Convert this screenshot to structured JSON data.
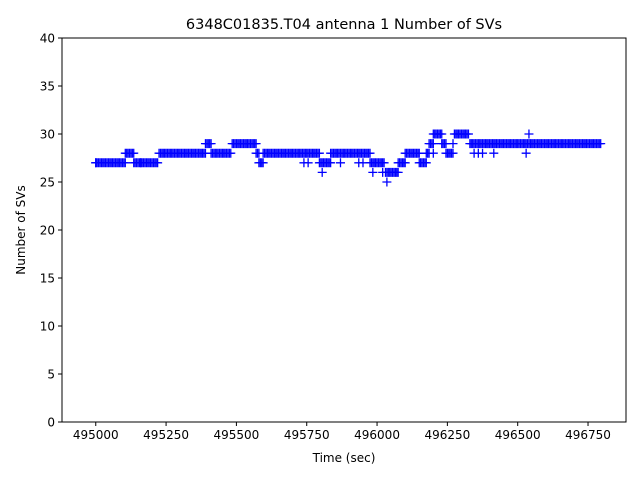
{
  "chart_data": {
    "type": "scatter",
    "title": "6348C01835.T04 antenna 1 Number of SVs",
    "xlabel": "Time (sec)",
    "ylabel": "Number of SVs",
    "xlim": [
      494880,
      496885
    ],
    "ylim": [
      0,
      40
    ],
    "xticks": [
      495000,
      495250,
      495500,
      495750,
      496000,
      496250,
      496500,
      496750
    ],
    "yticks": [
      0,
      5,
      10,
      15,
      20,
      25,
      30,
      35,
      40
    ],
    "grid": false,
    "legend": "none",
    "marker": "+",
    "color": "#0000ff",
    "runs": [
      {
        "x0": 495000,
        "x1": 495105,
        "y": 27
      },
      {
        "x0": 495105,
        "x1": 495135,
        "y": 28
      },
      {
        "x0": 495135,
        "x1": 495220,
        "y": 27
      },
      {
        "x0": 495225,
        "x1": 495390,
        "y": 28
      },
      {
        "x0": 495390,
        "x1": 495410,
        "y": 29
      },
      {
        "x0": 495410,
        "x1": 495480,
        "y": 28
      },
      {
        "x0": 495485,
        "x1": 495570,
        "y": 29
      },
      {
        "x0": 495570,
        "x1": 495580,
        "y": 28
      },
      {
        "x0": 495580,
        "x1": 495595,
        "y": 27
      },
      {
        "x0": 495595,
        "x1": 495795,
        "y": 28
      },
      {
        "x0": 495795,
        "x1": 495835,
        "y": 27
      },
      {
        "x0": 495835,
        "x1": 495975,
        "y": 28
      },
      {
        "x0": 495975,
        "x1": 496025,
        "y": 27
      },
      {
        "x0": 496030,
        "x1": 496075,
        "y": 26
      },
      {
        "x0": 496075,
        "x1": 496100,
        "y": 27
      },
      {
        "x0": 496100,
        "x1": 496150,
        "y": 28
      },
      {
        "x0": 496150,
        "x1": 496175,
        "y": 27
      },
      {
        "x0": 496175,
        "x1": 496185,
        "y": 28
      },
      {
        "x0": 496185,
        "x1": 496200,
        "y": 29
      },
      {
        "x0": 496200,
        "x1": 496230,
        "y": 30
      },
      {
        "x0": 496230,
        "x1": 496245,
        "y": 29
      },
      {
        "x0": 496245,
        "x1": 496270,
        "y": 28
      },
      {
        "x0": 496275,
        "x1": 496325,
        "y": 30
      },
      {
        "x0": 496330,
        "x1": 496795,
        "y": 29
      }
    ],
    "extra_points": [
      {
        "x": 495000,
        "y": 27
      },
      {
        "x": 495160,
        "y": 27
      },
      {
        "x": 495740,
        "y": 27
      },
      {
        "x": 495755,
        "y": 27
      },
      {
        "x": 495805,
        "y": 26
      },
      {
        "x": 495870,
        "y": 27
      },
      {
        "x": 495935,
        "y": 27
      },
      {
        "x": 495950,
        "y": 27
      },
      {
        "x": 495985,
        "y": 26
      },
      {
        "x": 496020,
        "y": 26
      },
      {
        "x": 496035,
        "y": 25
      },
      {
        "x": 496200,
        "y": 28
      },
      {
        "x": 496270,
        "y": 29
      },
      {
        "x": 496345,
        "y": 28
      },
      {
        "x": 496360,
        "y": 28
      },
      {
        "x": 496375,
        "y": 28
      },
      {
        "x": 496415,
        "y": 28
      },
      {
        "x": 496530,
        "y": 28
      },
      {
        "x": 496540,
        "y": 30
      }
    ]
  }
}
